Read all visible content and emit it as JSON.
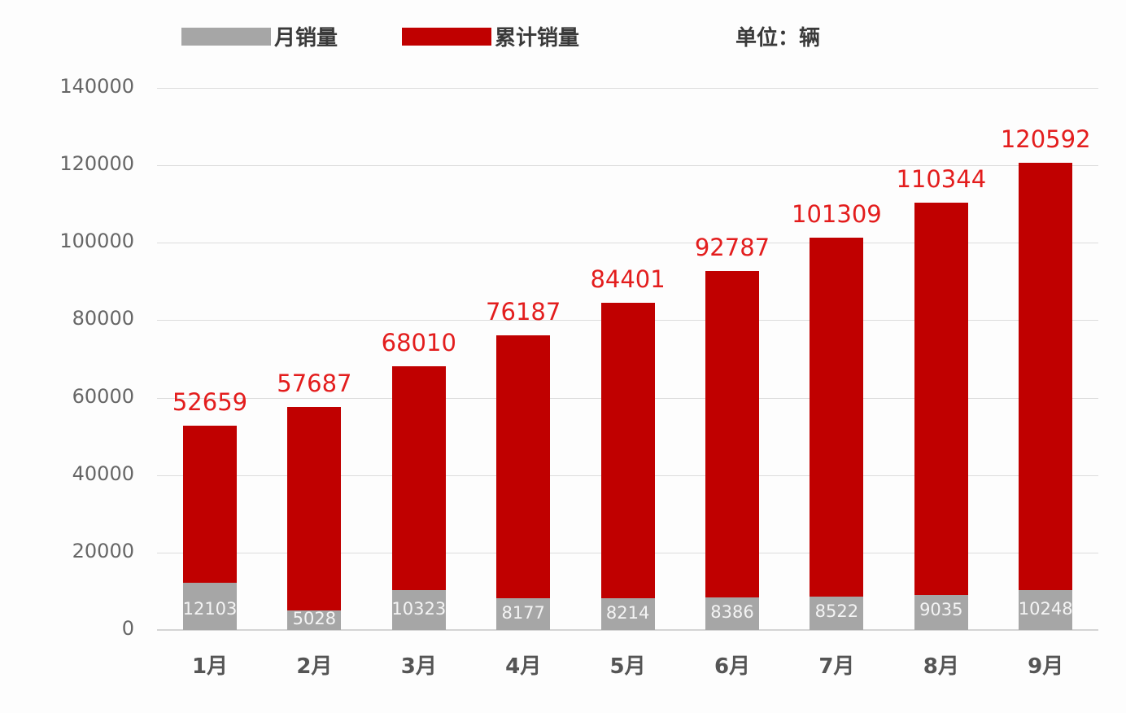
{
  "legend": {
    "monthly": {
      "label": "月销量",
      "color": "#a6a6a6"
    },
    "cumulative": {
      "label": "累计销量",
      "color": "#c00000"
    }
  },
  "unit_label": "单位：辆",
  "chart_data": {
    "type": "bar",
    "layout": "overlapped",
    "title": "",
    "xlabel": "",
    "ylabel": "",
    "unit": "单位：辆",
    "categories": [
      "1月",
      "2月",
      "3月",
      "4月",
      "5月",
      "6月",
      "7月",
      "8月",
      "9月"
    ],
    "series": [
      {
        "name": "累计销量",
        "color": "#c00000",
        "values": [
          52659,
          57687,
          68010,
          76187,
          84401,
          92787,
          101309,
          110344,
          120592
        ]
      },
      {
        "name": "月销量",
        "color": "#a6a6a6",
        "values": [
          12103,
          5028,
          10323,
          8177,
          8214,
          8386,
          8522,
          9035,
          10248
        ]
      }
    ],
    "ylim": [
      0,
      140000
    ],
    "yticks": [
      0,
      20000,
      40000,
      60000,
      80000,
      100000,
      120000,
      140000
    ],
    "grid": true,
    "legend_position": "top"
  }
}
